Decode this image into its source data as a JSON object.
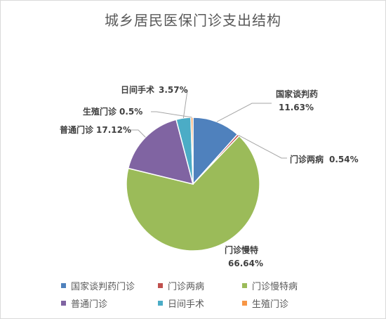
{
  "chart_data": {
    "type": "pie",
    "title": "城乡居民医保门诊支出结构",
    "legend_position": "bottom",
    "slices": [
      {
        "name": "国家谈判药门诊",
        "value": 11.63,
        "color": "#4f81bd",
        "label_name": "国家谈判药",
        "label_value": "11.63%"
      },
      {
        "name": "门诊两病",
        "value": 0.54,
        "color": "#c0504d",
        "label_name": "门诊两病",
        "label_value": "0.54%"
      },
      {
        "name": "门诊慢特病",
        "value": 66.64,
        "color": "#9bbb59",
        "label_name": "门诊慢特",
        "label_value": "66.64%"
      },
      {
        "name": "普通门诊",
        "value": 17.12,
        "color": "#8064a2",
        "label_name": "普通门诊",
        "label_value": "17.12%"
      },
      {
        "name": "日间手术",
        "value": 3.57,
        "color": "#4bacc6",
        "label_name": "日间手术",
        "label_value": "3.57%"
      },
      {
        "name": "生殖门诊",
        "value": 0.5,
        "color": "#f79646",
        "label_name": "生殖门诊",
        "label_value": "0.5%"
      }
    ]
  }
}
